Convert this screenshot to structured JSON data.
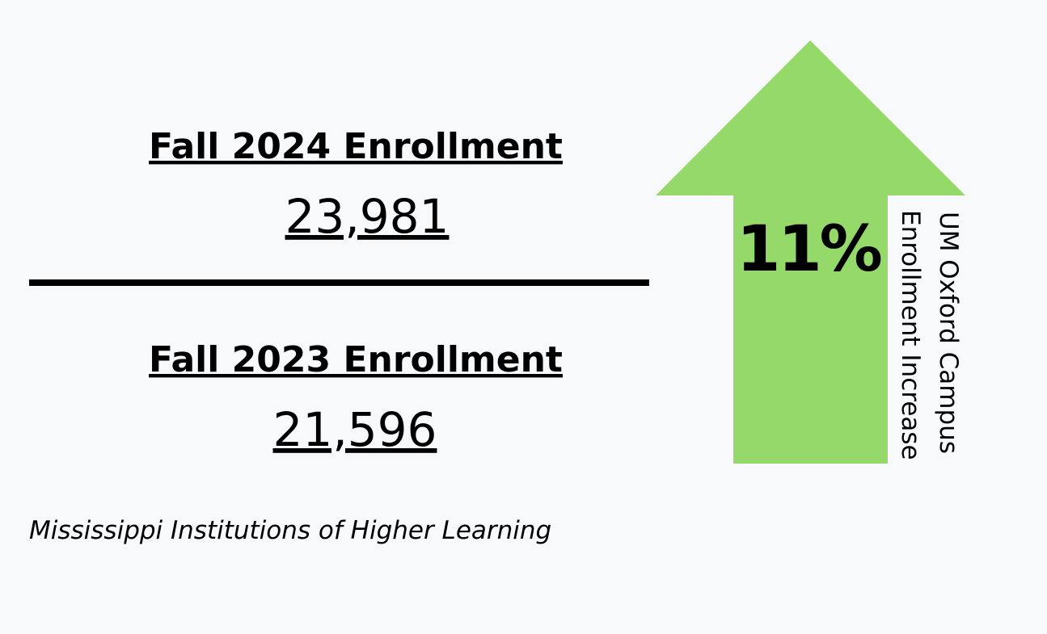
{
  "left": {
    "current": {
      "heading": "Fall 2024 Enrollment",
      "value": "23,981"
    },
    "previous": {
      "heading": "Fall 2023 Enrollment",
      "value": "21,596"
    },
    "source": "Mississippi Institutions of Higher Learning"
  },
  "arrow": {
    "value": "11%",
    "caption": [
      "UM Oxford Campus",
      "Enrollment Increase"
    ]
  }
}
